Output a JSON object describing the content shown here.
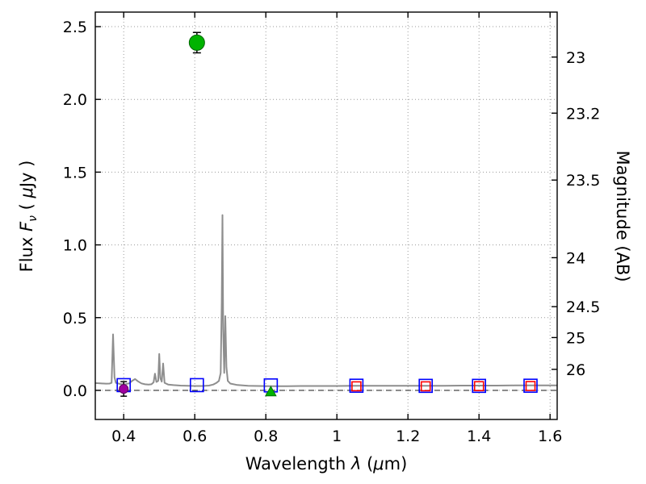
{
  "chart_data": {
    "type": "line",
    "title": "",
    "xlabel": "Wavelength λ (μm)",
    "xlabel_parts": {
      "text1": "Wavelength  ",
      "lambda": "λ",
      "text2": " (",
      "mu": "μ",
      "text3": "m)"
    },
    "ylabel_left": "Flux Fν ( μJy )",
    "ylabel_left_parts": {
      "text1": "Flux  ",
      "F": "F",
      "nu": "ν",
      "text2": "  ( ",
      "mu": "μ",
      "text3": "Jy )"
    },
    "ylabel_right": "Magnitude (AB)",
    "xlim": [
      0.32,
      1.62
    ],
    "ylim": [
      -0.2,
      2.6
    ],
    "x_ticks": [
      {
        "value": 0.4,
        "label": "0.4"
      },
      {
        "value": 0.6,
        "label": "0.6"
      },
      {
        "value": 0.8,
        "label": "0.8"
      },
      {
        "value": 1.0,
        "label": "1"
      },
      {
        "value": 1.2,
        "label": "1.2"
      },
      {
        "value": 1.4,
        "label": "1.4"
      },
      {
        "value": 1.6,
        "label": "1.6"
      }
    ],
    "y_ticks_left": [
      {
        "value": 0.0,
        "label": "0.0"
      },
      {
        "value": 0.5,
        "label": "0.5"
      },
      {
        "value": 1.0,
        "label": "1.0"
      },
      {
        "value": 1.5,
        "label": "1.5"
      },
      {
        "value": 2.0,
        "label": "2.0"
      },
      {
        "value": 2.5,
        "label": "2.5"
      }
    ],
    "y_ticks_right": [
      {
        "mag": 23,
        "label": "23"
      },
      {
        "mag": 23.2,
        "label": "23.2"
      },
      {
        "mag": 23.5,
        "label": "23.5"
      },
      {
        "mag": 24,
        "label": "24"
      },
      {
        "mag": 24.5,
        "label": "24.5"
      },
      {
        "mag": 25,
        "label": "25"
      },
      {
        "mag": 26,
        "label": "26"
      }
    ],
    "ab_zeropoint": 23.9,
    "grid": {
      "show": true,
      "color": "#999999",
      "style": "dotted"
    },
    "zero_line": {
      "y": 0.0,
      "color": "#333333",
      "style": "dashed"
    },
    "spectrum": {
      "name": "model-spectrum",
      "color": "#8e8e8e",
      "points": [
        [
          0.32,
          0.05
        ],
        [
          0.335,
          0.048
        ],
        [
          0.35,
          0.046
        ],
        [
          0.36,
          0.047
        ],
        [
          0.366,
          0.052
        ],
        [
          0.37,
          0.385
        ],
        [
          0.374,
          0.09
        ],
        [
          0.378,
          0.052
        ],
        [
          0.39,
          0.044
        ],
        [
          0.4,
          0.041
        ],
        [
          0.405,
          0.043
        ],
        [
          0.415,
          0.048
        ],
        [
          0.425,
          0.068
        ],
        [
          0.432,
          0.078
        ],
        [
          0.44,
          0.062
        ],
        [
          0.45,
          0.048
        ],
        [
          0.46,
          0.042
        ],
        [
          0.47,
          0.04
        ],
        [
          0.478,
          0.042
        ],
        [
          0.484,
          0.055
        ],
        [
          0.488,
          0.115
        ],
        [
          0.492,
          0.058
        ],
        [
          0.497,
          0.065
        ],
        [
          0.5,
          0.25
        ],
        [
          0.503,
          0.085
        ],
        [
          0.507,
          0.06
        ],
        [
          0.511,
          0.185
        ],
        [
          0.515,
          0.052
        ],
        [
          0.525,
          0.04
        ],
        [
          0.54,
          0.036
        ],
        [
          0.56,
          0.033
        ],
        [
          0.58,
          0.031
        ],
        [
          0.6,
          0.03
        ],
        [
          0.62,
          0.03
        ],
        [
          0.64,
          0.033
        ],
        [
          0.652,
          0.04
        ],
        [
          0.66,
          0.05
        ],
        [
          0.668,
          0.065
        ],
        [
          0.673,
          0.12
        ],
        [
          0.676,
          0.6
        ],
        [
          0.678,
          1.205
        ],
        [
          0.68,
          0.42
        ],
        [
          0.683,
          0.12
        ],
        [
          0.686,
          0.51
        ],
        [
          0.689,
          0.16
        ],
        [
          0.693,
          0.065
        ],
        [
          0.7,
          0.047
        ],
        [
          0.72,
          0.037
        ],
        [
          0.75,
          0.032
        ],
        [
          0.78,
          0.03
        ],
        [
          0.82,
          0.029
        ],
        [
          0.86,
          0.029
        ],
        [
          0.9,
          0.03
        ],
        [
          0.95,
          0.03
        ],
        [
          1.0,
          0.03
        ],
        [
          1.05,
          0.031
        ],
        [
          1.1,
          0.032
        ],
        [
          1.15,
          0.031
        ],
        [
          1.2,
          0.031
        ],
        [
          1.25,
          0.032
        ],
        [
          1.3,
          0.032
        ],
        [
          1.35,
          0.033
        ],
        [
          1.4,
          0.033
        ],
        [
          1.45,
          0.033
        ],
        [
          1.5,
          0.034
        ],
        [
          1.55,
          0.034
        ],
        [
          1.6,
          0.034
        ],
        [
          1.62,
          0.034
        ]
      ]
    },
    "series": [
      {
        "name": "model-photometry",
        "marker": "open-square",
        "color": "#0000ff",
        "size": 16,
        "points": [
          [
            0.4,
            0.036
          ],
          [
            0.606,
            0.036
          ],
          [
            0.814,
            0.034
          ],
          [
            1.055,
            0.032
          ],
          [
            1.25,
            0.031
          ],
          [
            1.4,
            0.031
          ],
          [
            1.545,
            0.032
          ]
        ]
      },
      {
        "name": "observed-photometry",
        "marker": "open-square",
        "color": "#ff0000",
        "size": 11,
        "points": [
          [
            1.055,
            0.028
          ],
          [
            1.25,
            0.028
          ],
          [
            1.4,
            0.029
          ],
          [
            1.545,
            0.03
          ]
        ]
      },
      {
        "name": "detection",
        "marker": "filled-circle",
        "color": "#00b300",
        "edge": "#006600",
        "size": 9.5,
        "cap": 5,
        "points": [
          [
            0.606,
            2.39
          ]
        ],
        "yerr": [
          0.07
        ]
      },
      {
        "name": "upper-limit",
        "marker": "filled-triangle-up",
        "color": "#00b300",
        "edge": "#007700",
        "size": 13,
        "points": [
          [
            0.814,
            -0.012
          ]
        ]
      },
      {
        "name": "faint-detection",
        "marker": "filled-circle",
        "color": "#a000a0",
        "edge": "#600060",
        "size": 5.5,
        "cap": 4,
        "points": [
          [
            0.4,
            0.01
          ]
        ],
        "yerr": [
          0.05
        ]
      }
    ]
  }
}
